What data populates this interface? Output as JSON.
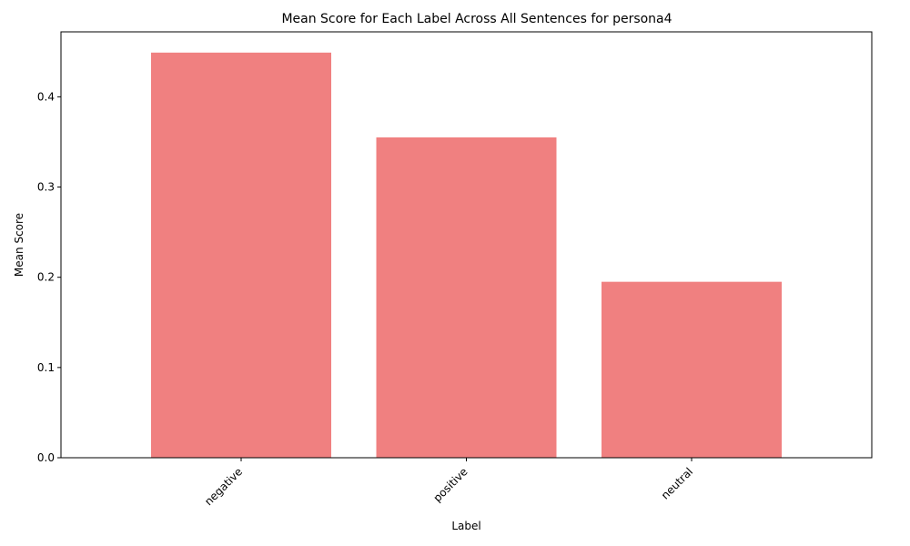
{
  "chart_data": {
    "type": "bar",
    "title": "Mean Score for Each Label Across All Sentences for persona4",
    "xlabel": "Label",
    "ylabel": "Mean Score",
    "categories": [
      "negative",
      "positive",
      "neutral"
    ],
    "values": [
      0.449,
      0.355,
      0.195
    ],
    "ylim": [
      0,
      0.472
    ],
    "yticks": [
      "0.0",
      "0.1",
      "0.2",
      "0.3",
      "0.4"
    ],
    "bar_color": "#f08080",
    "grid": false,
    "legend": "none",
    "xtick_rotation": -45
  }
}
